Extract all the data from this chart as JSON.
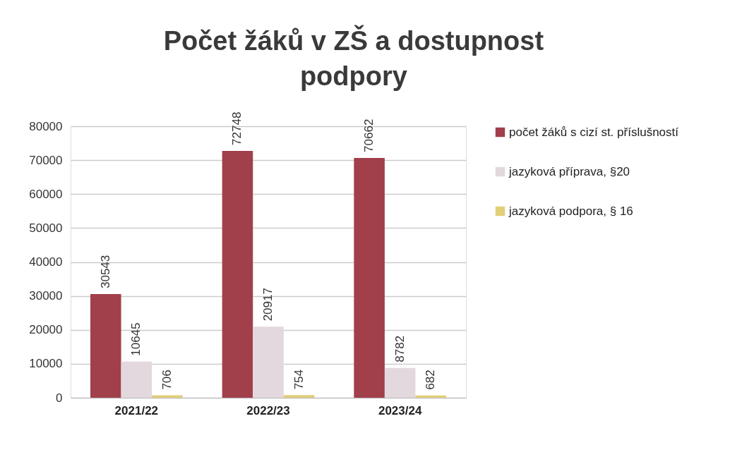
{
  "chart_data": {
    "type": "bar",
    "title": "Počet žáků v ZŠ a dostupnost podpory",
    "categories": [
      "2021/22",
      "2022/23",
      "2023/24"
    ],
    "series": [
      {
        "name": "počet žáků s cizí st. příslušností",
        "color": "#a13f4b",
        "values": [
          30543,
          72748,
          70662
        ]
      },
      {
        "name": "jazyková příprava, §20",
        "color": "#e3d8de",
        "values": [
          10645,
          20917,
          8782
        ]
      },
      {
        "name": "jazyková podpora, § 16",
        "color": "#e2cf78",
        "values": [
          706,
          754,
          682
        ]
      }
    ],
    "ylim": [
      0,
      80000
    ],
    "yticks": [
      0,
      10000,
      20000,
      30000,
      40000,
      50000,
      60000,
      70000,
      80000
    ],
    "grid": "y",
    "legend": "right",
    "data_labels": true
  }
}
